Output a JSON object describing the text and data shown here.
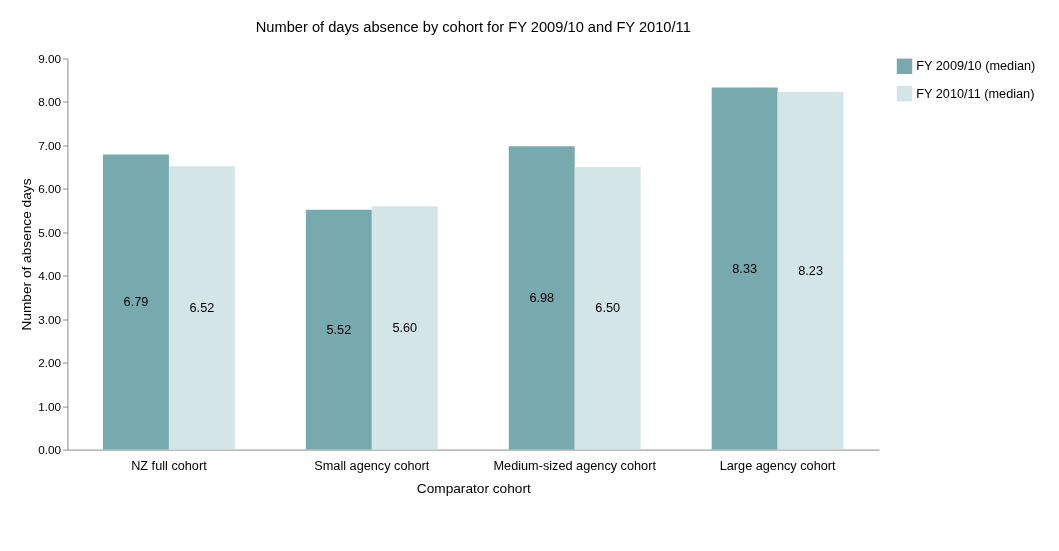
{
  "chart_data": {
    "type": "bar",
    "title": "Number of days absence by cohort for FY 2009/10 and FY 2010/11",
    "xlabel": "Comparator cohort",
    "ylabel": "Number of absence days",
    "categories": [
      "NZ full cohort",
      "Small agency cohort",
      "Medium-sized agency cohort",
      "Large agency cohort"
    ],
    "series": [
      {
        "name": "FY 2009/10  (median)",
        "color": "#76aaaf",
        "values": [
          6.79,
          5.52,
          6.98,
          8.33
        ],
        "value_labels": [
          "6.79",
          "5.52",
          "6.98",
          "8.33"
        ]
      },
      {
        "name": "FY 2010/11  (median)",
        "color": "#d4e5e7",
        "values": [
          6.52,
          5.6,
          6.5,
          8.23
        ],
        "value_labels": [
          "6.52",
          "5.60",
          "6.50",
          "8.23"
        ]
      }
    ],
    "ylim": [
      0,
      9
    ],
    "yticks": [
      {
        "value": 0,
        "label": "0.00"
      },
      {
        "value": 1,
        "label": "1.00"
      },
      {
        "value": 2,
        "label": "2.00"
      },
      {
        "value": 3,
        "label": "3.00"
      },
      {
        "value": 4,
        "label": "4.00"
      },
      {
        "value": 5,
        "label": "5.00"
      },
      {
        "value": 6,
        "label": "6.00"
      },
      {
        "value": 7,
        "label": "7.00"
      },
      {
        "value": 8,
        "label": "8.00"
      },
      {
        "value": 9,
        "label": "9.00"
      }
    ],
    "grid": false,
    "legend": "right"
  }
}
